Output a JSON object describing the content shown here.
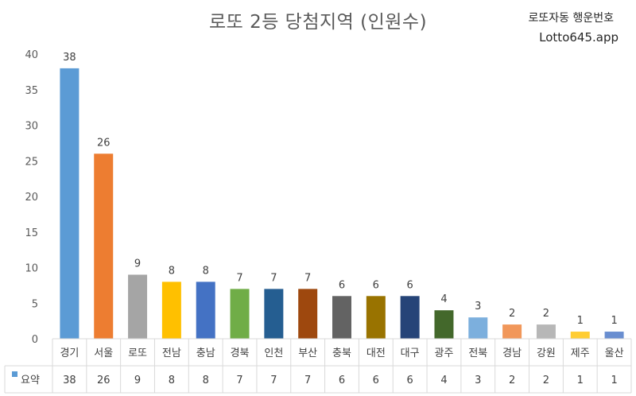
{
  "title": "로또 2등 당첨지역 (인원수)",
  "brand": {
    "name": "로또자동 행운번호",
    "url": "Lotto645.app"
  },
  "chart_data": {
    "type": "bar",
    "title": "로또 2등 당첨지역 (인원수)",
    "categories": [
      "경기",
      "서울",
      "로또",
      "전남",
      "충남",
      "경북",
      "인천",
      "부산",
      "충북",
      "대전",
      "대구",
      "광주",
      "전북",
      "경남",
      "강원",
      "제주",
      "울산"
    ],
    "series": [
      {
        "name": "요약",
        "values": [
          38,
          26,
          9,
          8,
          8,
          7,
          7,
          7,
          6,
          6,
          6,
          4,
          3,
          2,
          2,
          1,
          1
        ]
      }
    ],
    "colors": [
      "#5b9bd5",
      "#ed7d31",
      "#a5a5a5",
      "#ffc000",
      "#4472c4",
      "#70ad47",
      "#255e91",
      "#9e480e",
      "#636363",
      "#997300",
      "#264478",
      "#43682b",
      "#7cafdd",
      "#f1975a",
      "#b7b7b7",
      "#ffcd33",
      "#698ed0"
    ],
    "legend_color": "#5b9bd5",
    "ylim": [
      0,
      40
    ],
    "yticks": [
      "0",
      "5",
      "10",
      "15",
      "20",
      "25",
      "30",
      "35",
      "40"
    ],
    "grid": false,
    "legend": "data-table",
    "xlabel": "",
    "ylabel": ""
  }
}
